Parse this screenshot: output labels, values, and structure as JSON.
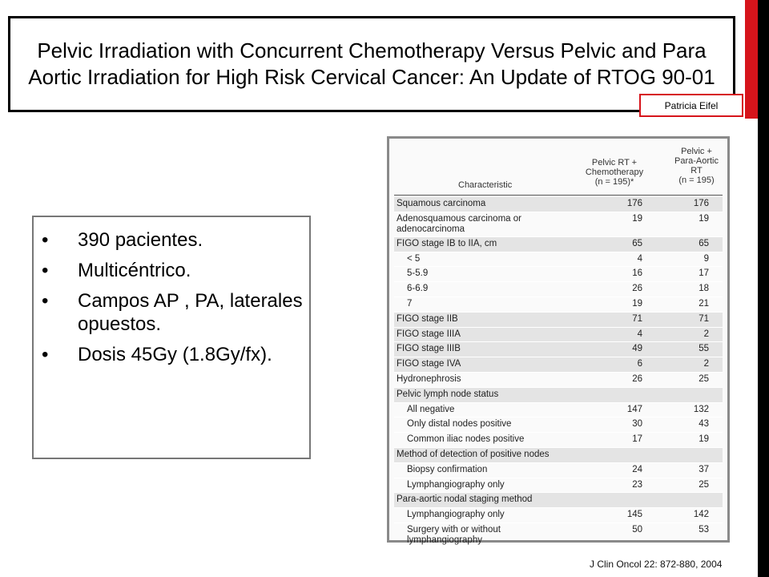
{
  "title": "Pelvic Irradiation with Concurrent Chemotherapy Versus Pelvic and Para Aortic Irradiation for High Risk Cervical Cancer: An Update of RTOG 90-01",
  "author": "Patricia Eifel",
  "bullets": [
    "390 pacientes.",
    "Multicéntrico.",
    "Campos AP , PA, laterales opuestos.",
    "Dosis 45Gy (1.8Gy/fx)."
  ],
  "table": {
    "col_characteristic": "Characteristic",
    "col1": [
      "Pelvic RT +",
      "Chemotherapy",
      "(n = 195)*"
    ],
    "col2": [
      "Pelvic +",
      "Para-Aortic",
      "RT",
      "(n = 195)"
    ],
    "rows": [
      {
        "label": "Squamous carcinoma",
        "v1": "176",
        "v2": "176",
        "shade": true,
        "sub": false
      },
      {
        "label": "Adenosquamous carcinoma or adenocarcinoma",
        "v1": "19",
        "v2": "19",
        "shade": false,
        "sub": false,
        "tall": true
      },
      {
        "label": "FIGO stage IB to IIA, cm",
        "v1": "65",
        "v2": "65",
        "shade": true,
        "sub": false
      },
      {
        "label": "< 5",
        "v1": "4",
        "v2": "9",
        "shade": false,
        "sub": true
      },
      {
        "label": "5-5.9",
        "v1": "16",
        "v2": "17",
        "shade": false,
        "sub": true
      },
      {
        "label": "6-6.9",
        "v1": "26",
        "v2": "18",
        "shade": false,
        "sub": true
      },
      {
        "label": "7",
        "v1": "19",
        "v2": "21",
        "shade": false,
        "sub": true
      },
      {
        "label": "FIGO stage IIB",
        "v1": "71",
        "v2": "71",
        "shade": true,
        "sub": false
      },
      {
        "label": "FIGO stage IIIA",
        "v1": "4",
        "v2": "2",
        "shade": true,
        "sub": false
      },
      {
        "label": "FIGO stage IIIB",
        "v1": "49",
        "v2": "55",
        "shade": true,
        "sub": false
      },
      {
        "label": "FIGO stage IVA",
        "v1": "6",
        "v2": "2",
        "shade": true,
        "sub": false
      },
      {
        "label": "Hydronephrosis",
        "v1": "26",
        "v2": "25",
        "shade": false,
        "sub": false
      },
      {
        "label": "Pelvic lymph node status",
        "v1": "",
        "v2": "",
        "shade": true,
        "sub": false
      },
      {
        "label": "All negative",
        "v1": "147",
        "v2": "132",
        "shade": false,
        "sub": true
      },
      {
        "label": "Only distal nodes positive",
        "v1": "30",
        "v2": "43",
        "shade": false,
        "sub": true
      },
      {
        "label": "Common iliac nodes positive",
        "v1": "17",
        "v2": "19",
        "shade": false,
        "sub": true
      },
      {
        "label": "Method of detection of positive nodes",
        "v1": "",
        "v2": "",
        "shade": true,
        "sub": false
      },
      {
        "label": "Biopsy confirmation",
        "v1": "24",
        "v2": "37",
        "shade": false,
        "sub": true
      },
      {
        "label": "Lymphangiography only",
        "v1": "23",
        "v2": "25",
        "shade": false,
        "sub": true
      },
      {
        "label": "Para-aortic nodal staging method",
        "v1": "",
        "v2": "",
        "shade": true,
        "sub": false
      },
      {
        "label": "Lymphangiography only",
        "v1": "145",
        "v2": "142",
        "shade": false,
        "sub": true
      },
      {
        "label": "Surgery with or without lymphangiography",
        "v1": "50",
        "v2": "53",
        "shade": false,
        "sub": true,
        "tall": true
      }
    ]
  },
  "citation": "J Clin Oncol 22: 872-880, 2004",
  "colors": {
    "accent_red": "#d6141b",
    "bar_black": "#000000"
  }
}
